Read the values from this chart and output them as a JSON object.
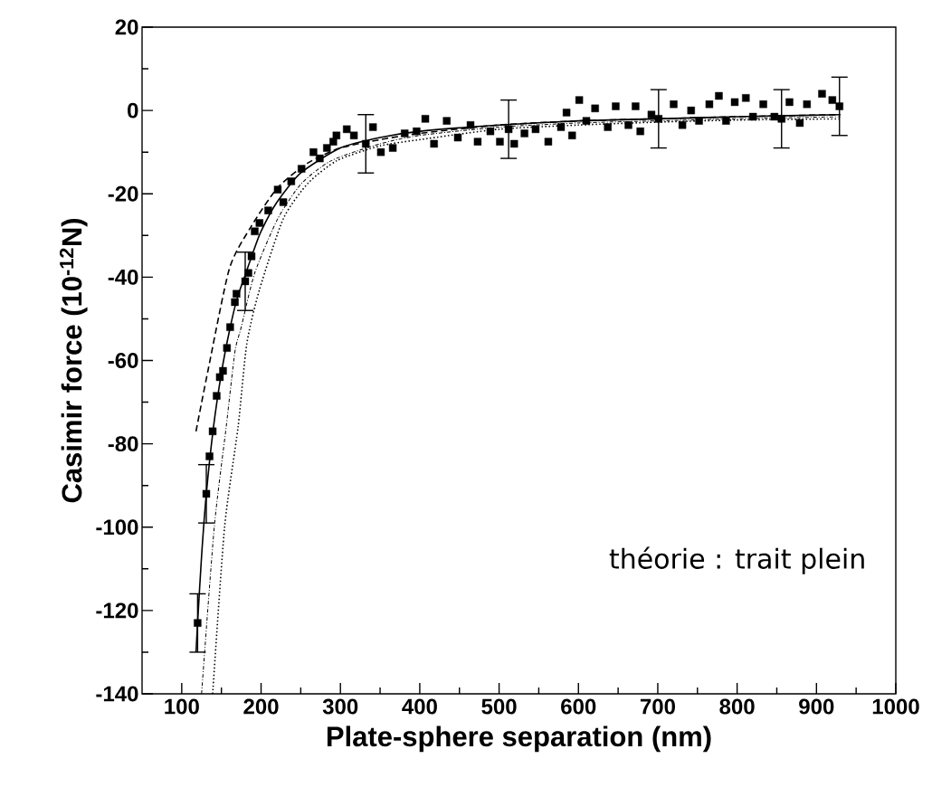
{
  "chart_data": {
    "type": "scatter",
    "xlabel": "Plate-sphere separation (nm)",
    "ylabel": "Casimir force (10$^{-12}$N)",
    "annotations": [
      "théorie : trait plein"
    ],
    "xlim": [
      50,
      1000
    ],
    "ylim": [
      -140,
      20
    ],
    "xticks": [
      100,
      200,
      300,
      400,
      500,
      600,
      700,
      800,
      900,
      1000
    ],
    "yticks": [
      -140,
      -120,
      -100,
      -80,
      -60,
      -40,
      -20,
      0,
      20
    ],
    "series": [
      {
        "marker": "square",
        "color": "#000000",
        "x": [
          120,
          131,
          135,
          139,
          144,
          148,
          152,
          157,
          161,
          167,
          169,
          180,
          184,
          188,
          192,
          198,
          209,
          221,
          228,
          238,
          251,
          266,
          274,
          283,
          291,
          295,
          308,
          317,
          332,
          341,
          351,
          366,
          381,
          396,
          407,
          418,
          434,
          448,
          464,
          473,
          489,
          501,
          512,
          519,
          532,
          546,
          562,
          578,
          585,
          592,
          601,
          610,
          621,
          637,
          647,
          663,
          672,
          678,
          692,
          701,
          720,
          731,
          742,
          752,
          765,
          777,
          786,
          797,
          811,
          820,
          833,
          847,
          856,
          866,
          879,
          888,
          907,
          920,
          929
        ],
        "values": [
          -123,
          -92,
          -83,
          -77,
          -68.5,
          -64,
          -62.5,
          -57,
          -52,
          -46,
          -44,
          -41,
          -39,
          -35,
          -29,
          -27,
          -24,
          -19,
          -22,
          -17,
          -14,
          -10,
          -11.5,
          -9,
          -7.5,
          -6,
          -4.5,
          -6,
          -8,
          -4,
          -10,
          -9,
          -5.5,
          -5,
          -2,
          -8,
          -2.5,
          -6.5,
          -3.5,
          -7.5,
          -5,
          -7.5,
          -4.5,
          -8,
          -5.5,
          -4.5,
          -7.5,
          -4,
          -0.5,
          -6,
          2.5,
          -2.5,
          0.5,
          -4,
          1,
          -3.5,
          1,
          -5,
          -1,
          -2,
          1.5,
          -3.5,
          0,
          -2.5,
          1.5,
          3.5,
          -2.5,
          2,
          3,
          -1.5,
          1.5,
          -1.5,
          -2,
          2,
          -3,
          1.5,
          4,
          2.5,
          1
        ],
        "errors": [
          7,
          7,
          null,
          null,
          null,
          null,
          null,
          null,
          null,
          null,
          null,
          7,
          null,
          null,
          null,
          null,
          null,
          null,
          null,
          null,
          null,
          null,
          null,
          null,
          null,
          null,
          null,
          null,
          7,
          null,
          null,
          null,
          null,
          null,
          null,
          null,
          null,
          null,
          null,
          null,
          null,
          null,
          7,
          null,
          null,
          null,
          null,
          null,
          null,
          null,
          null,
          null,
          null,
          null,
          null,
          null,
          null,
          null,
          null,
          7,
          null,
          null,
          null,
          null,
          null,
          null,
          null,
          null,
          null,
          null,
          null,
          null,
          7,
          null,
          null,
          null,
          null,
          null,
          7
        ]
      },
      {
        "type": "line",
        "line_style": "solid",
        "color": "#000000",
        "x": [
          118,
          120,
          125,
          131,
          140,
          150,
          160,
          170,
          180,
          190,
          200,
          220,
          250,
          300,
          350,
          400,
          500,
          600,
          700,
          800,
          930
        ],
        "values": [
          -130,
          -123,
          -107,
          -92,
          -76,
          -63,
          -53,
          -45,
          -39.5,
          -34,
          -29,
          -22,
          -15,
          -9,
          -6.5,
          -5,
          -3.5,
          -2.5,
          -2,
          -1.5,
          -1
        ]
      },
      {
        "type": "line",
        "line_style": "dashed",
        "color": "#000000",
        "x": [
          118,
          133,
          160,
          187,
          221,
          260,
          300,
          350,
          400,
          500,
          600,
          700,
          800,
          930
        ],
        "values": [
          -77,
          -62.5,
          -38,
          -28,
          -18.5,
          -12.5,
          -9,
          -7,
          -5.5,
          -3.5,
          -2.5,
          -2,
          -1.5,
          -1
        ]
      },
      {
        "type": "line",
        "line_style": "dashdot",
        "color": "#000000",
        "x": [
          125,
          141,
          156,
          167,
          175,
          192,
          221,
          251,
          289,
          350,
          400,
          500,
          600,
          700,
          800,
          930
        ],
        "values": [
          -140,
          -100,
          -76,
          -58,
          -52,
          -39,
          -26,
          -17.5,
          -12,
          -8,
          -6,
          -4,
          -3,
          -2.5,
          -2,
          -1.5
        ]
      },
      {
        "type": "line",
        "line_style": "dotted",
        "color": "#000000",
        "x": [
          139,
          154,
          171,
          182,
          198,
          228,
          259,
          296,
          350,
          400,
          500,
          600,
          700,
          800,
          930
        ],
        "values": [
          -140,
          -100,
          -76,
          -56,
          -43,
          -26,
          -17.5,
          -12,
          -8.5,
          -7,
          -4.5,
          -3.5,
          -2.8,
          -2.3,
          -2
        ]
      }
    ]
  }
}
